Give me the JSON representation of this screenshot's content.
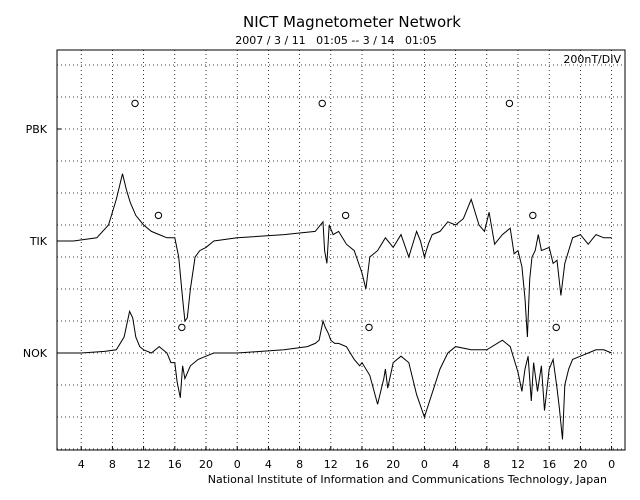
{
  "chart_data": {
    "type": "line",
    "title": "NICT Magnetometer Network",
    "subtitle": "2007 / 3 / 11   01:05 -- 3 / 14   01:05",
    "scale_label": "200nT/DIV",
    "footer": "National Institute of Information and Communications Technology, Japan",
    "xlabel": "",
    "ylabel": "",
    "grid": true,
    "x_tick_labels": [
      "4",
      "8",
      "12",
      "16",
      "20",
      "0",
      "4",
      "8",
      "12",
      "16",
      "20",
      "0",
      "4",
      "8",
      "12",
      "16",
      "20",
      "0"
    ],
    "x_range_hours": [
      0,
      72
    ],
    "y_range_div": [
      -12,
      4
    ],
    "stations": [
      {
        "name": "PBK",
        "baseline_div": 0,
        "markers_hours": [
          10.9,
          34.9,
          58.9
        ],
        "marker_offset_div": 0.8
      },
      {
        "name": "TIK",
        "baseline_div": -3.5,
        "markers_hours": [
          13.9,
          37.9,
          61.9
        ],
        "marker_offset_div": 0.8
      },
      {
        "name": "NOK",
        "baseline_div": -7,
        "markers_hours": [
          16.9,
          40.9,
          64.9
        ],
        "marker_offset_div": 0.8
      }
    ],
    "series": [
      {
        "name": "TIK",
        "x": [
          0,
          3,
          6,
          7.5,
          8.5,
          9.3,
          9.8,
          10.3,
          11,
          12,
          13,
          14,
          15,
          16,
          16.5,
          17,
          17.3,
          17.6,
          18,
          18.6,
          19.2,
          20,
          21,
          24,
          30,
          34,
          35,
          35.2,
          35.5,
          35.8,
          36.3,
          37,
          37.5,
          38,
          39,
          40,
          40.5,
          41,
          42,
          43,
          44,
          45,
          46,
          47,
          47.5,
          48,
          48.5,
          49,
          50,
          51,
          52,
          53,
          54,
          55,
          55.7,
          56.3,
          57,
          58,
          59,
          59.5,
          60,
          60.5,
          60.9,
          61.2,
          61.5,
          61.8,
          62.2,
          62.6,
          63,
          64,
          64.5,
          65,
          65.5,
          66,
          67,
          68,
          69,
          70,
          71,
          72
        ],
        "values": [
          0,
          0,
          0.1,
          0.5,
          1.3,
          2.1,
          1.6,
          1.2,
          0.8,
          0.5,
          0.3,
          0.2,
          0.1,
          0.1,
          -0.5,
          -1.8,
          -2.5,
          -2.4,
          -1.5,
          -0.5,
          -0.3,
          -0.2,
          0,
          0.1,
          0.2,
          0.3,
          0.6,
          -0.3,
          -0.7,
          0.5,
          0.2,
          0.3,
          0.1,
          -0.1,
          -0.3,
          -1.0,
          -1.5,
          -0.5,
          -0.3,
          0.1,
          -0.2,
          0.2,
          -0.5,
          0.3,
          0,
          -0.5,
          -0.1,
          0.2,
          0.3,
          0.6,
          0.5,
          0.7,
          1.3,
          0.5,
          0.3,
          0.9,
          -0.1,
          0.2,
          0.4,
          -0.4,
          -0.3,
          -0.8,
          -1.8,
          -3,
          -1.2,
          -0.5,
          -0.3,
          0.2,
          -0.3,
          -0.2,
          -0.7,
          -0.6,
          -1.7,
          -0.7,
          0.1,
          0.2,
          -0.1,
          0.2,
          0.1,
          0.1
        ]
      },
      {
        "name": "NOK",
        "x": [
          0,
          4,
          7,
          8.5,
          9.5,
          10.2,
          10.6,
          11,
          11.5,
          12,
          13,
          14,
          15,
          15.5,
          16,
          16.3,
          16.7,
          17,
          17.3,
          18,
          19,
          20,
          21,
          24,
          30,
          33,
          34,
          34.5,
          35,
          35.3,
          35.7,
          36,
          36.5,
          37,
          38,
          39,
          39.7,
          40,
          41,
          42,
          42.8,
          43,
          43.3,
          44,
          45,
          46,
          47,
          48,
          50,
          51,
          52,
          54,
          56,
          58,
          59,
          59.5,
          60,
          60.5,
          60.9,
          61.3,
          61.7,
          62,
          62.5,
          63,
          63.4,
          64,
          64.5,
          65,
          65.3,
          65.7,
          66,
          66.5,
          67,
          68,
          69,
          70,
          71,
          72
        ],
        "values": [
          0,
          0,
          0.05,
          0.1,
          0.5,
          1.3,
          1.1,
          0.5,
          0.2,
          0.1,
          0,
          0.2,
          0,
          -0.3,
          -0.3,
          -0.9,
          -1.4,
          -0.4,
          -0.8,
          -0.4,
          -0.2,
          -0.1,
          0,
          0,
          0.1,
          0.2,
          0.3,
          0.4,
          1.0,
          0.8,
          0.6,
          0.4,
          0.3,
          0.3,
          0.2,
          -0.2,
          -0.4,
          -0.3,
          -0.7,
          -1.6,
          -0.8,
          -0.5,
          -1.1,
          -0.3,
          -0.1,
          -0.3,
          -1.3,
          -2.0,
          -0.5,
          0,
          0.2,
          0.1,
          0.1,
          0.4,
          0.2,
          -0.2,
          -0.6,
          -1.2,
          -0.5,
          -0.1,
          -1.5,
          -0.3,
          -1.2,
          -0.4,
          -1.8,
          -0.5,
          -0.2,
          -1.1,
          -1.7,
          -2.7,
          -1.0,
          -0.5,
          -0.2,
          -0.1,
          0,
          0.1,
          0.1,
          0
        ]
      }
    ]
  }
}
